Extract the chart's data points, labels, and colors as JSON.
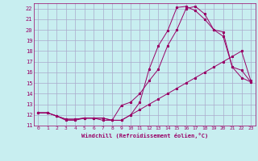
{
  "xlabel": "Windchill (Refroidissement éolien,°C)",
  "bg_color": "#c8eef0",
  "grid_color": "#aaaacc",
  "line_color": "#990066",
  "xlim": [
    -0.5,
    23.5
  ],
  "ylim": [
    11,
    22.5
  ],
  "xticks": [
    0,
    1,
    2,
    3,
    4,
    5,
    6,
    7,
    8,
    9,
    10,
    11,
    12,
    13,
    14,
    15,
    16,
    17,
    18,
    19,
    20,
    21,
    22,
    23
  ],
  "yticks": [
    11,
    12,
    13,
    14,
    15,
    16,
    17,
    18,
    19,
    20,
    21,
    22
  ],
  "curve1_x": [
    0,
    1,
    2,
    3,
    4,
    5,
    6,
    7,
    8,
    9,
    10,
    11,
    12,
    13,
    14,
    15,
    16,
    17,
    18,
    19,
    20,
    21,
    22,
    23
  ],
  "curve1_y": [
    12.2,
    12.2,
    11.9,
    11.6,
    11.6,
    11.7,
    11.7,
    11.7,
    11.5,
    11.5,
    12.0,
    12.5,
    13.0,
    13.5,
    14.0,
    14.5,
    15.0,
    15.5,
    16.0,
    16.5,
    17.0,
    17.5,
    18.0,
    15.2
  ],
  "curve2_x": [
    0,
    1,
    2,
    3,
    4,
    5,
    6,
    7,
    8,
    9,
    10,
    11,
    12,
    13,
    14,
    15,
    16,
    17,
    18,
    19,
    20,
    21,
    22,
    23
  ],
  "curve2_y": [
    12.2,
    12.2,
    11.9,
    11.5,
    11.5,
    11.7,
    11.7,
    11.5,
    11.5,
    12.9,
    13.2,
    14.0,
    15.2,
    16.3,
    18.5,
    20.0,
    22.0,
    22.2,
    21.5,
    20.0,
    19.8,
    16.5,
    16.2,
    15.1
  ],
  "curve3_x": [
    0,
    1,
    2,
    3,
    4,
    5,
    6,
    7,
    8,
    9,
    10,
    11,
    12,
    13,
    14,
    15,
    16,
    17,
    18,
    19,
    20,
    21,
    22,
    23
  ],
  "curve3_y": [
    12.2,
    12.2,
    11.9,
    11.6,
    11.6,
    11.7,
    11.7,
    11.7,
    11.5,
    11.5,
    12.0,
    13.2,
    16.3,
    18.5,
    19.9,
    22.1,
    22.2,
    21.8,
    21.0,
    20.0,
    19.4,
    16.5,
    15.5,
    15.1
  ]
}
